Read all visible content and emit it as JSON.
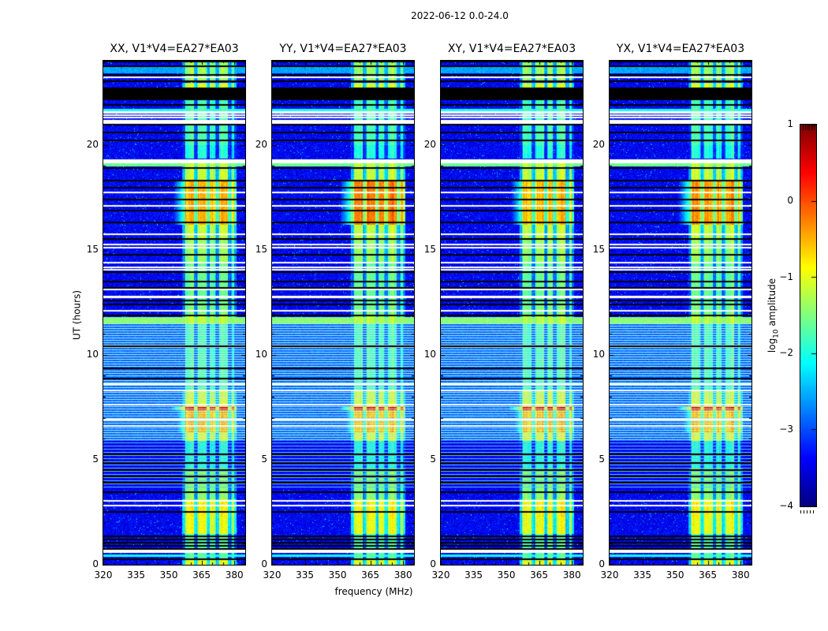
{
  "chart_data": {
    "type": "heatmap",
    "title": "2022-06-12 0.0-24.0",
    "xlabel": "frequency (MHz)",
    "ylabel": "UT (hours)",
    "x_range_mhz": [
      320,
      385
    ],
    "x_ticks": [
      "320",
      "335",
      "350",
      "365",
      "380"
    ],
    "x_tick_values": [
      320,
      335,
      350,
      365,
      380
    ],
    "x_minor_step_mhz": 5,
    "y_range_hours": [
      0,
      24
    ],
    "y_ticks": [
      "0",
      "5",
      "10",
      "15",
      "20"
    ],
    "y_tick_values": [
      0,
      5,
      10,
      15,
      20
    ],
    "y_minor_step_hours": 1,
    "panels": [
      {
        "label": "XX, V1*V4=EA27*EA03",
        "seed": 11,
        "block_offset": 0.0
      },
      {
        "label": "YY, V1*V4=EA27*EA03",
        "seed": 22,
        "block_offset": 0.3
      },
      {
        "label": "XY, V1*V4=EA27*EA03",
        "seed": 33,
        "block_offset": -0.05
      },
      {
        "label": "YX, V1*V4=EA27*EA03",
        "seed": 44,
        "block_offset": 0.15
      }
    ],
    "colorbar": {
      "label": "log10 amplitude",
      "label_main": "log",
      "label_sub": "10",
      "label_rest": " amplitude",
      "colormap": "jet",
      "range": [
        -4,
        1
      ],
      "ticks": [
        "1",
        "0",
        "−1",
        "−2",
        "−3",
        "−4"
      ],
      "tick_values": [
        1,
        0,
        -1,
        -2,
        -3,
        -4
      ]
    },
    "background": {
      "base": -3.72,
      "noise": 0.62,
      "speckle_prob": 0.012,
      "speckle_value": -2.45
    },
    "rfi_band": {
      "range_mhz": [
        356.2,
        381.2
      ],
      "gap_strength": 0.4,
      "gap_penalty": 2.2,
      "subbands_mhz": [
        [
          357.2,
          362.0,
          1.0
        ],
        [
          363.0,
          367.6,
          1.0
        ],
        [
          368.6,
          371.6,
          0.95
        ],
        [
          372.8,
          377.2,
          1.0
        ],
        [
          378.6,
          380.2,
          0.85
        ]
      ]
    },
    "time_envelope": [
      {
        "hours": [
          23.0,
          24.0
        ],
        "value": -1.35
      },
      {
        "hours": [
          22.72,
          22.95
        ],
        "value": -1.05
      },
      {
        "hours": [
          21.9,
          22.15
        ],
        "value": -1.8
      },
      {
        "hours": [
          20.0,
          21.86
        ],
        "value": -1.75
      },
      {
        "hours": [
          19.35,
          20.0
        ],
        "value": -1.95
      },
      {
        "hours": [
          18.32,
          19.1
        ],
        "value": -1.15
      },
      {
        "hours": [
          16.2,
          18.28
        ],
        "value": -0.5,
        "per_panel": true
      },
      {
        "hours": [
          15.5,
          16.2
        ],
        "value": -1.15
      },
      {
        "hours": [
          14.4,
          15.5
        ],
        "value": -1.35
      },
      {
        "hours": [
          12.4,
          14.4
        ],
        "value": -1.6
      },
      {
        "hours": [
          11.9,
          12.4
        ],
        "value": -1.5
      },
      {
        "hours": [
          11.5,
          11.9
        ],
        "value": -1.2
      },
      {
        "hours": [
          8.3,
          11.5
        ],
        "value": -1.75
      },
      {
        "hours": [
          7.55,
          8.3
        ],
        "value": -1.05
      },
      {
        "hours": [
          7.38,
          7.55
        ],
        "value": 0.35
      },
      {
        "hours": [
          6.3,
          7.38
        ],
        "value": -0.55
      },
      {
        "hours": [
          5.88,
          6.3
        ],
        "value": -1.0
      },
      {
        "hours": [
          4.6,
          5.88
        ],
        "value": -1.95
      },
      {
        "hours": [
          3.1,
          4.6
        ],
        "value": -1.45
      },
      {
        "hours": [
          2.25,
          3.1
        ],
        "value": -0.85
      },
      {
        "hours": [
          1.45,
          2.25
        ],
        "value": -0.95
      },
      {
        "hours": [
          0.3,
          1.45
        ],
        "value": -1.7
      },
      {
        "hours": [
          0.0,
          0.3
        ],
        "value": -1.0
      }
    ],
    "stripes": [
      {
        "hours": [
          5.88,
          11.5
        ],
        "period": 3,
        "bright_color": "#b7e9f2",
        "dark_value": -2.85
      },
      {
        "hours": [
          3.55,
          5.88
        ],
        "period": 4,
        "bright_color": "#63cbe8",
        "dark_value": -3.4
      }
    ],
    "black_rows": [
      [
        22.15,
        22.72
      ],
      [
        23.93,
        23.97
      ],
      [
        23.7,
        23.74
      ],
      [
        23.3,
        23.34
      ],
      [
        23.02,
        23.06
      ],
      [
        21.86,
        21.9
      ],
      [
        20.93,
        20.97
      ],
      [
        20.55,
        20.59
      ],
      [
        20.18,
        20.22
      ],
      [
        18.86,
        18.9
      ],
      [
        18.28,
        18.32
      ],
      [
        17.93,
        17.97
      ],
      [
        17.38,
        17.42
      ],
      [
        16.83,
        16.87
      ],
      [
        16.28,
        16.32
      ],
      [
        15.48,
        15.52
      ],
      [
        14.73,
        14.77
      ],
      [
        13.93,
        13.97
      ],
      [
        13.48,
        13.52
      ],
      [
        13.17,
        13.21
      ],
      [
        12.55,
        12.59
      ],
      [
        12.38,
        12.42
      ],
      [
        11.86,
        11.9
      ],
      [
        10.38,
        10.42
      ],
      [
        9.33,
        9.37
      ],
      [
        8.83,
        8.87
      ],
      [
        5.23,
        5.27
      ],
      [
        4.83,
        4.87
      ],
      [
        4.48,
        4.52
      ],
      [
        4.18,
        4.22
      ],
      [
        3.88,
        3.92
      ],
      [
        3.43,
        3.47
      ],
      [
        2.5,
        2.54
      ],
      [
        1.33,
        1.37
      ],
      [
        1.18,
        1.22
      ],
      [
        1.03,
        1.07
      ],
      [
        0.88,
        0.92
      ],
      [
        0.73,
        0.77
      ],
      [
        0.23,
        0.27
      ]
    ],
    "white_rows": [
      [
        21.02,
        21.18
      ],
      [
        19.12,
        19.3
      ],
      [
        0.58,
        0.68
      ],
      [
        23.18,
        23.22
      ],
      [
        21.52,
        21.56
      ],
      [
        21.4,
        21.44
      ],
      [
        21.28,
        21.32
      ],
      [
        17.7,
        17.74
      ],
      [
        17.08,
        17.12
      ],
      [
        15.7,
        15.74
      ],
      [
        15.23,
        15.27
      ],
      [
        15.08,
        15.12
      ],
      [
        14.38,
        14.42
      ],
      [
        14.15,
        14.19
      ],
      [
        14.02,
        14.06
      ],
      [
        13.08,
        13.12
      ],
      [
        12.73,
        12.77
      ],
      [
        12.08,
        12.12
      ],
      [
        8.58,
        8.62
      ],
      [
        8.28,
        8.32
      ],
      [
        7.62,
        7.66
      ],
      [
        6.88,
        6.92
      ],
      [
        6.58,
        6.62
      ],
      [
        3.03,
        3.07
      ],
      [
        2.78,
        2.82
      ]
    ],
    "bright_rows": [
      {
        "hours": [
          23.4,
          23.75
        ],
        "value": -2.55
      },
      {
        "hours": [
          21.6,
          21.68
        ],
        "value": -2.0
      },
      {
        "hours": [
          19.0,
          19.08
        ],
        "value": -1.6
      },
      {
        "hours": [
          11.52,
          11.78
        ],
        "value": -1.45
      },
      {
        "hours": [
          0.4,
          0.48
        ],
        "value": -2.0
      }
    ]
  }
}
